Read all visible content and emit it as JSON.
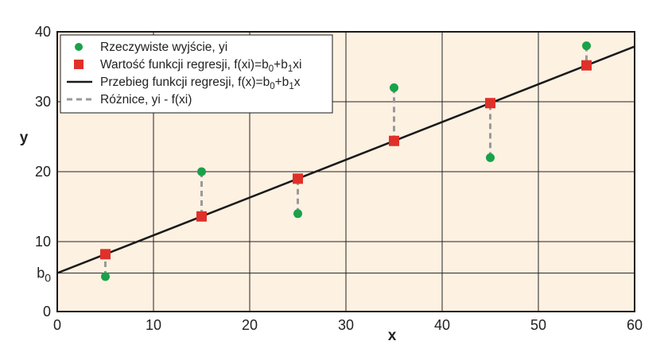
{
  "chart_data": {
    "type": "scatter",
    "xlabel": "x",
    "ylabel": "y",
    "xlim": [
      0,
      60
    ],
    "ylim": [
      0,
      40
    ],
    "xticks": [
      "0",
      "10",
      "20",
      "30",
      "40",
      "50",
      "60"
    ],
    "yticks": [
      "0",
      "10",
      "20",
      "30",
      "40"
    ],
    "b0_tick": {
      "value": 5.5,
      "label": "b",
      "sub": "0"
    },
    "grid": true,
    "legend_position": "top-left",
    "legend": [
      {
        "kind": "circle",
        "text": "Rzeczywiste wyjście, yi"
      },
      {
        "kind": "square",
        "prefix": "Wartość funkcji regresji, f(xi)=b",
        "s1": "0",
        "mid": "+b",
        "s2": "1",
        "suffix": "xi"
      },
      {
        "kind": "line",
        "prefix": "Przebieg funkcji regresji, f(x)=b",
        "s1": "0",
        "mid": "+b",
        "s2": "1",
        "suffix": "x"
      },
      {
        "kind": "dashed",
        "text": "Różnice, yi - f(xi)"
      }
    ],
    "regression": {
      "intercept": 5.5,
      "slope": 0.54
    },
    "actual": [
      {
        "x": 5,
        "y": 5
      },
      {
        "x": 15,
        "y": 20
      },
      {
        "x": 25,
        "y": 14
      },
      {
        "x": 35,
        "y": 32
      },
      {
        "x": 45,
        "y": 22
      },
      {
        "x": 55,
        "y": 38
      }
    ],
    "predicted": [
      {
        "x": 5,
        "y": 8.2
      },
      {
        "x": 15,
        "y": 13.6
      },
      {
        "x": 25,
        "y": 19
      },
      {
        "x": 35,
        "y": 24.4
      },
      {
        "x": 45,
        "y": 29.8
      },
      {
        "x": 55,
        "y": 35.2
      }
    ],
    "colors": {
      "background": "#fdf1e2",
      "actual": "#1aa14a",
      "predicted": "#e0302a",
      "regression_line": "#1a1a1a",
      "residual": "#9a9a9a",
      "grid": "#222222"
    }
  }
}
